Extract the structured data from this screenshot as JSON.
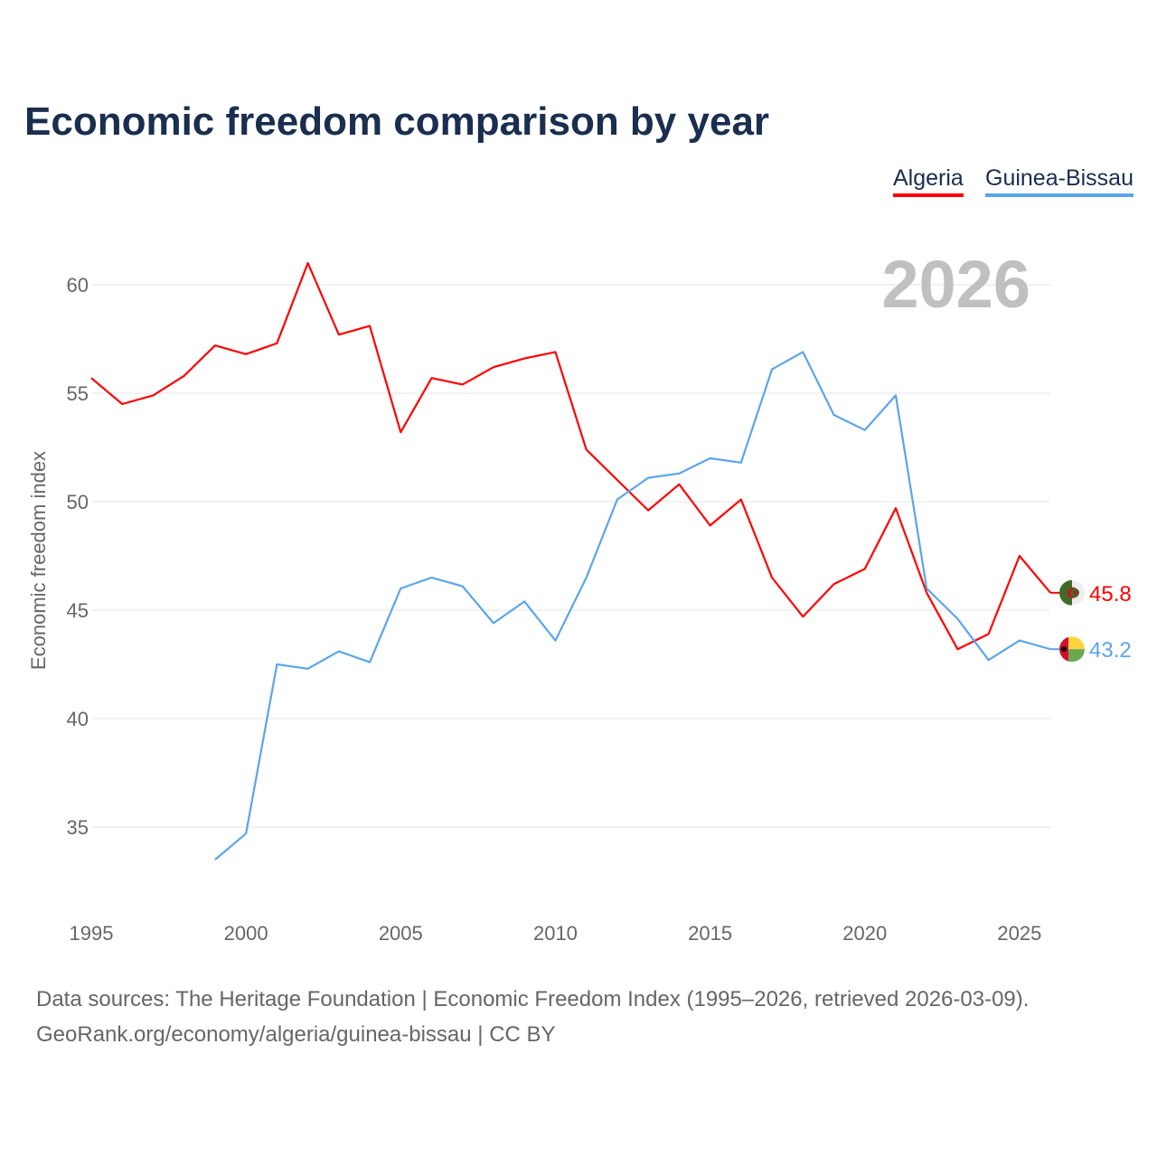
{
  "title": "Economic freedom comparison by year",
  "footer": {
    "line1": "Data sources: The Heritage Foundation | Economic Freedom Index (1995–2026, retrieved 2026-03-09).",
    "line2": "GeoRank.org/economy/algeria/guinea-bissau | CC BY"
  },
  "chart_data": {
    "type": "line",
    "title": "Economic freedom comparison by year",
    "ylabel": "Economic freedom index",
    "xlabel": "",
    "year_label": "2026",
    "xlim": [
      1995,
      2026
    ],
    "ylim": [
      31.5,
      63
    ],
    "xticks": [
      1995,
      2000,
      2005,
      2010,
      2015,
      2020,
      2025
    ],
    "yticks": [
      35,
      40,
      45,
      50,
      55,
      60
    ],
    "grid": true,
    "legend_position": "top-right",
    "series": [
      {
        "name": "Algeria",
        "color": "#ff0000",
        "end_label": "45.8",
        "flag": "algeria-flag",
        "x": [
          1995,
          1996,
          1997,
          1998,
          1999,
          2000,
          2001,
          2002,
          2003,
          2004,
          2005,
          2006,
          2007,
          2008,
          2009,
          2010,
          2011,
          2012,
          2013,
          2014,
          2015,
          2016,
          2017,
          2018,
          2019,
          2020,
          2021,
          2022,
          2023,
          2024,
          2025,
          2026
        ],
        "values": [
          55.7,
          54.5,
          54.9,
          55.8,
          57.2,
          56.8,
          57.3,
          61.0,
          57.7,
          58.1,
          53.2,
          55.7,
          55.4,
          56.2,
          56.6,
          56.9,
          52.4,
          51.0,
          49.6,
          50.8,
          48.9,
          50.1,
          46.5,
          44.7,
          46.2,
          46.9,
          49.7,
          45.8,
          43.2,
          43.9,
          47.5,
          45.8
        ]
      },
      {
        "name": "Guinea-Bissau",
        "color": "#5aa5eb",
        "end_label": "43.2",
        "flag": "guinea-bissau-flag",
        "x": [
          1999,
          2000,
          2001,
          2002,
          2003,
          2004,
          2005,
          2006,
          2007,
          2008,
          2009,
          2010,
          2011,
          2012,
          2013,
          2014,
          2015,
          2016,
          2017,
          2018,
          2019,
          2020,
          2021,
          2022,
          2023,
          2024,
          2025,
          2026
        ],
        "values": [
          33.5,
          34.7,
          42.5,
          42.3,
          43.1,
          42.6,
          46.0,
          46.5,
          46.1,
          44.4,
          45.4,
          43.6,
          46.5,
          50.1,
          51.1,
          51.3,
          52.0,
          51.8,
          56.1,
          56.9,
          54.0,
          53.3,
          54.9,
          46.0,
          44.6,
          42.7,
          43.6,
          43.2
        ]
      }
    ]
  }
}
